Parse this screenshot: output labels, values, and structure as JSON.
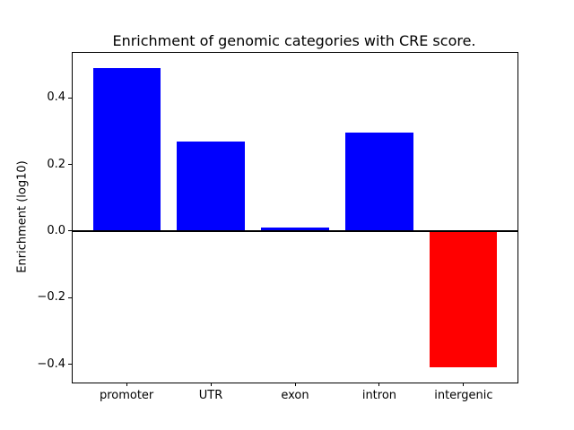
{
  "chart_data": {
    "type": "bar",
    "title": "Enrichment of genomic categories with CRE score.",
    "xlabel": "",
    "ylabel": "Enrichment (log10)",
    "categories": [
      "promoter",
      "UTR",
      "exon",
      "intron",
      "intergenic"
    ],
    "values": [
      0.49,
      0.27,
      0.01,
      0.295,
      -0.41
    ],
    "bar_colors": [
      "#0000ff",
      "#0000ff",
      "#0000ff",
      "#0000ff",
      "#ff0000"
    ],
    "positive_color": "#0000ff",
    "negative_color": "#ff0000",
    "ylim": [
      -0.455,
      0.535
    ],
    "xlim": [
      -0.64,
      4.64
    ],
    "bar_width": 0.8,
    "yticks": [
      {
        "value": -0.4,
        "label": "−0.4"
      },
      {
        "value": -0.2,
        "label": "−0.2"
      },
      {
        "value": 0.0,
        "label": "0.0"
      },
      {
        "value": 0.2,
        "label": "0.2"
      },
      {
        "value": 0.4,
        "label": "0.4"
      }
    ],
    "zero_line": true,
    "grid": false,
    "legend": null
  }
}
